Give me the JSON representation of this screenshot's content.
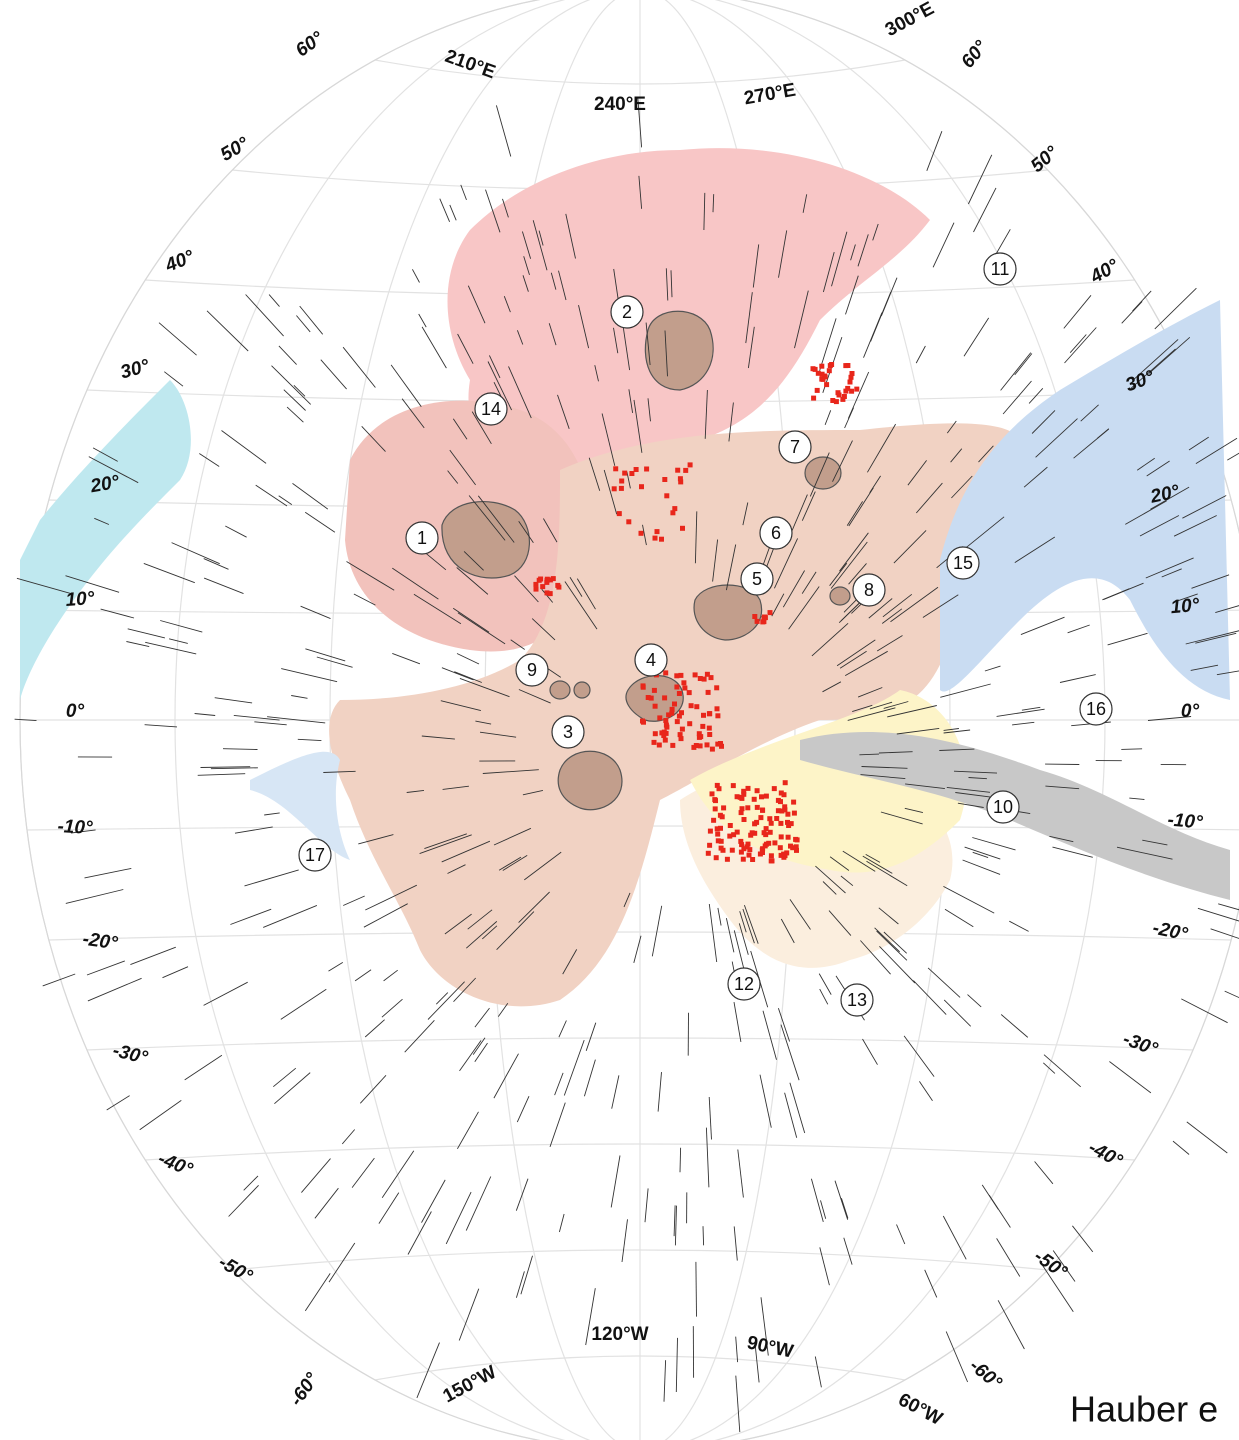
{
  "latitude_labels_left": [
    "60°",
    "50°",
    "40°",
    "30°",
    "20°",
    "10°",
    "0°",
    "-10°",
    "-20°",
    "-30°",
    "-40°",
    "-50°",
    "-60°"
  ],
  "latitude_labels_right": [
    "60°",
    "50°",
    "40°",
    "30°",
    "20°",
    "10°",
    "0°",
    "-10°",
    "-20°",
    "-30°",
    "-40°",
    "-50°",
    "-60°"
  ],
  "longitude_labels_top": [
    "210°E",
    "240°E",
    "270°E",
    "300°E"
  ],
  "longitude_labels_bottom": [
    "150°W",
    "120°W",
    "90°W",
    "60°W"
  ],
  "features": [
    "1",
    "2",
    "3",
    "4",
    "5",
    "6",
    "7",
    "8",
    "9",
    "10",
    "11",
    "12",
    "13",
    "14",
    "15",
    "16",
    "17"
  ],
  "credit": "Hauber e"
}
